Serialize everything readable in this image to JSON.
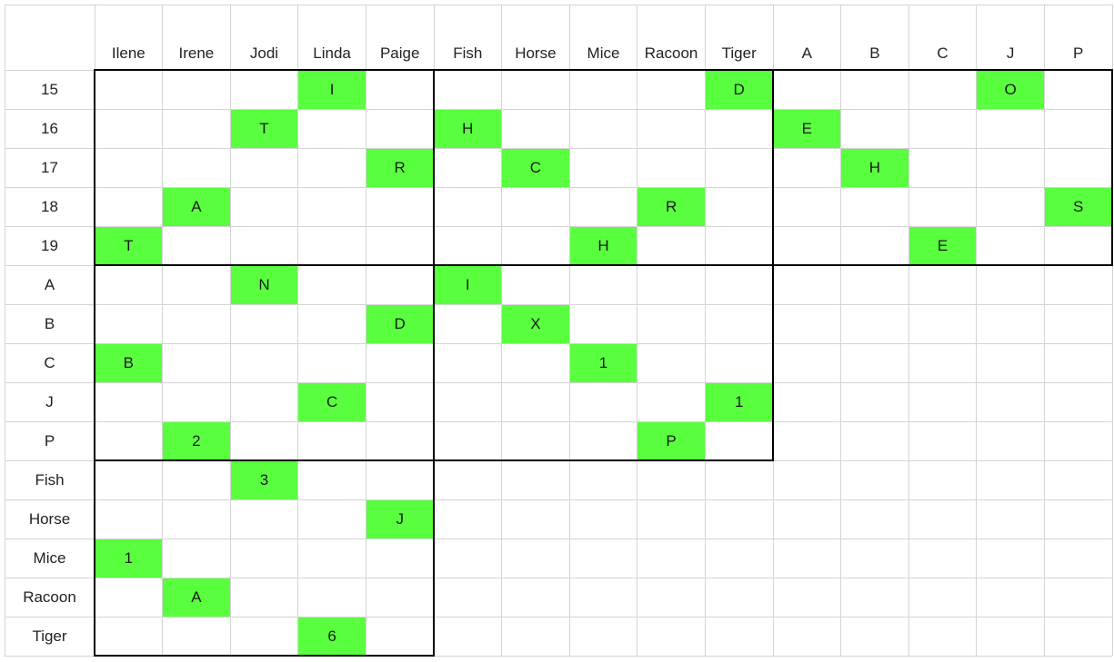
{
  "colors": {
    "fill": "#59ff3f",
    "grid": "#d4d4d4",
    "border": "#000000",
    "text": "#222222"
  },
  "columns": [
    "Ilene",
    "Irene",
    "Jodi",
    "Linda",
    "Paige",
    "Fish",
    "Horse",
    "Mice",
    "Racoon",
    "Tiger",
    "A",
    "B",
    "C",
    "J",
    "P"
  ],
  "rows": [
    "15",
    "16",
    "17",
    "18",
    "19",
    "A",
    "B",
    "C",
    "J",
    "P",
    "Fish",
    "Horse",
    "Mice",
    "Racoon",
    "Tiger"
  ],
  "marks": [
    {
      "row": "15",
      "col": "Linda",
      "text": "I"
    },
    {
      "row": "15",
      "col": "Tiger",
      "text": "D"
    },
    {
      "row": "15",
      "col": "J",
      "text": "O"
    },
    {
      "row": "16",
      "col": "Jodi",
      "text": "T"
    },
    {
      "row": "16",
      "col": "Fish",
      "text": "H"
    },
    {
      "row": "16",
      "col": "A",
      "text": "E"
    },
    {
      "row": "17",
      "col": "Paige",
      "text": "R"
    },
    {
      "row": "17",
      "col": "Horse",
      "text": "C"
    },
    {
      "row": "17",
      "col": "B",
      "text": "H"
    },
    {
      "row": "18",
      "col": "Irene",
      "text": "A"
    },
    {
      "row": "18",
      "col": "Racoon",
      "text": "R"
    },
    {
      "row": "18",
      "col": "P",
      "text": "S"
    },
    {
      "row": "19",
      "col": "Ilene",
      "text": "T"
    },
    {
      "row": "19",
      "col": "Mice",
      "text": "H"
    },
    {
      "row": "19",
      "col": "C",
      "text": "E"
    },
    {
      "row": "A",
      "col": "Jodi",
      "text": "N"
    },
    {
      "row": "A",
      "col": "Fish",
      "text": "I"
    },
    {
      "row": "B",
      "col": "Paige",
      "text": "D"
    },
    {
      "row": "B",
      "col": "Horse",
      "text": "X"
    },
    {
      "row": "C",
      "col": "Ilene",
      "text": "B"
    },
    {
      "row": "C",
      "col": "Mice",
      "text": "1"
    },
    {
      "row": "J",
      "col": "Linda",
      "text": "C"
    },
    {
      "row": "J",
      "col": "Tiger",
      "text": "1"
    },
    {
      "row": "P",
      "col": "Irene",
      "text": "2"
    },
    {
      "row": "P",
      "col": "Racoon",
      "text": "P"
    },
    {
      "row": "Fish",
      "col": "Jodi",
      "text": "3"
    },
    {
      "row": "Horse",
      "col": "Paige",
      "text": "J"
    },
    {
      "row": "Mice",
      "col": "Ilene",
      "text": "1"
    },
    {
      "row": "Racoon",
      "col": "Irene",
      "text": "A"
    },
    {
      "row": "Tiger",
      "col": "Linda",
      "text": "6"
    }
  ]
}
